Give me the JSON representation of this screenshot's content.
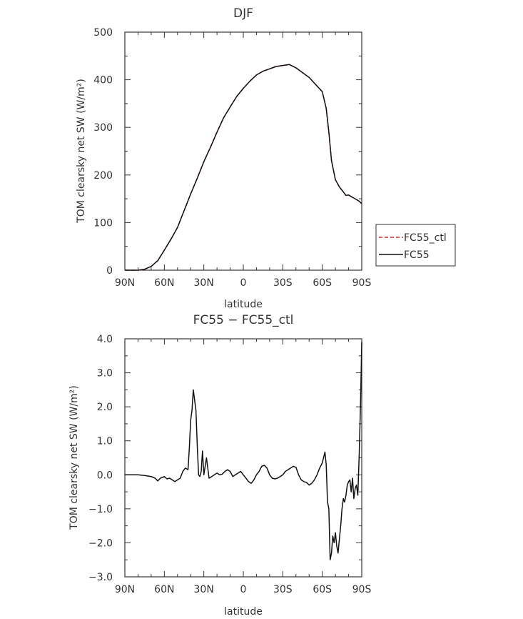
{
  "chart_data": [
    {
      "type": "line",
      "title": "DJF",
      "xlabel": "latitude",
      "ylabel": "TOM clearsky net SW (W/m²)",
      "xlim": [
        90,
        -90
      ],
      "ylim": [
        0,
        500
      ],
      "xticks": [
        90,
        60,
        30,
        0,
        -30,
        -60,
        -90
      ],
      "xtick_labels": [
        "90N",
        "60N",
        "30N",
        "0",
        "30S",
        "60S",
        "90S"
      ],
      "yticks": [
        0,
        100,
        200,
        300,
        400,
        500
      ],
      "ytick_labels": [
        "0",
        "100",
        "200",
        "300",
        "400",
        "500"
      ],
      "legend": "right",
      "series": [
        {
          "name": "FC55_ctl",
          "color": "#dd2222",
          "style": "dashed",
          "x": [
            90,
            80,
            75,
            70,
            65,
            60,
            55,
            50,
            45,
            40,
            35,
            30,
            25,
            20,
            15,
            10,
            5,
            0,
            -5,
            -10,
            -15,
            -20,
            -25,
            -30,
            -35,
            -40,
            -45,
            -50,
            -55,
            -60,
            -63,
            -65,
            -67,
            -70,
            -73,
            -75,
            -78,
            -80,
            -83,
            -85,
            -88,
            -90
          ],
          "y": [
            0,
            0,
            2,
            8,
            20,
            42,
            65,
            90,
            125,
            160,
            193,
            228,
            258,
            290,
            320,
            343,
            365,
            382,
            397,
            410,
            418,
            423,
            428,
            430,
            432,
            425,
            415,
            405,
            390,
            375,
            340,
            290,
            230,
            190,
            175,
            168,
            157,
            158,
            153,
            150,
            145,
            140
          ]
        },
        {
          "name": "FC55",
          "color": "#111111",
          "style": "solid",
          "x": [
            90,
            80,
            75,
            70,
            65,
            60,
            55,
            50,
            45,
            40,
            35,
            30,
            25,
            20,
            15,
            10,
            5,
            0,
            -5,
            -10,
            -15,
            -20,
            -25,
            -30,
            -35,
            -40,
            -45,
            -50,
            -55,
            -60,
            -63,
            -65,
            -67,
            -70,
            -73,
            -75,
            -78,
            -80,
            -83,
            -85,
            -88,
            -90
          ],
          "y": [
            0,
            0,
            2,
            8,
            20,
            42,
            65,
            90,
            125,
            160,
            193,
            228,
            258,
            290,
            320,
            343,
            365,
            382,
            397,
            410,
            418,
            423,
            428,
            430,
            432,
            425,
            415,
            405,
            390,
            375,
            340,
            290,
            230,
            190,
            175,
            168,
            157,
            158,
            153,
            150,
            145,
            140
          ]
        }
      ]
    },
    {
      "type": "line",
      "title": "FC55 − FC55_ctl",
      "xlabel": "latitude",
      "ylabel": "TOM clearsky net SW (W/m²)",
      "xlim": [
        90,
        -90
      ],
      "ylim": [
        -3,
        4
      ],
      "xticks": [
        90,
        60,
        30,
        0,
        -30,
        -60,
        -90
      ],
      "xtick_labels": [
        "90N",
        "60N",
        "30N",
        "0",
        "30S",
        "60S",
        "90S"
      ],
      "yticks": [
        -3,
        -2,
        -1,
        0,
        1,
        2,
        3,
        4
      ],
      "ytick_labels": [
        "−3.0",
        "−2.0",
        "−1.0",
        "0.0",
        "1.0",
        "2.0",
        "3.0",
        "4.0"
      ],
      "series": [
        {
          "name": "",
          "color": "#111111",
          "style": "solid",
          "x": [
            90,
            80,
            75,
            70,
            67,
            65,
            63,
            60,
            58,
            56,
            54,
            52,
            50,
            48,
            46,
            44,
            42,
            41,
            40,
            39,
            38,
            36,
            35,
            34,
            33,
            32,
            31,
            30,
            28,
            26,
            24,
            22,
            20,
            18,
            16,
            14,
            12,
            10,
            8,
            6,
            4,
            2,
            0,
            -2,
            -4,
            -6,
            -8,
            -10,
            -12,
            -14,
            -16,
            -18,
            -20,
            -22,
            -24,
            -26,
            -28,
            -30,
            -32,
            -34,
            -36,
            -38,
            -40,
            -42,
            -44,
            -46,
            -48,
            -50,
            -52,
            -54,
            -56,
            -58,
            -60,
            -62,
            -63,
            -64,
            -65,
            -66,
            -67,
            -68,
            -69,
            -70,
            -71,
            -72,
            -73,
            -74,
            -75,
            -76,
            -77,
            -78,
            -79,
            -80,
            -81,
            -82,
            -83,
            -84,
            -85,
            -86,
            -87,
            -88,
            -89,
            -90
          ],
          "y": [
            0,
            0,
            -0.02,
            -0.05,
            -0.1,
            -0.18,
            -0.1,
            -0.05,
            -0.12,
            -0.1,
            -0.15,
            -0.2,
            -0.15,
            -0.1,
            0.1,
            0.2,
            0.15,
            0.8,
            1.6,
            1.9,
            2.5,
            1.9,
            0.9,
            0.0,
            -0.05,
            0.1,
            0.7,
            0.0,
            0.5,
            -0.1,
            -0.05,
            0.0,
            0.05,
            0.0,
            0.02,
            0.1,
            0.15,
            0.1,
            -0.05,
            0.0,
            0.05,
            0.1,
            0.0,
            -0.1,
            -0.2,
            -0.25,
            -0.15,
            0.0,
            0.1,
            0.25,
            0.28,
            0.2,
            0.0,
            -0.1,
            -0.12,
            -0.1,
            -0.05,
            0.0,
            0.1,
            0.15,
            0.2,
            0.25,
            0.22,
            0.0,
            -0.15,
            -0.2,
            -0.22,
            -0.3,
            -0.25,
            -0.15,
            0.0,
            0.2,
            0.35,
            0.67,
            0.3,
            -0.8,
            -1.0,
            -2.5,
            -2.3,
            -1.8,
            -2.0,
            -1.7,
            -2.1,
            -2.3,
            -1.9,
            -1.5,
            -1.0,
            -0.7,
            -0.8,
            -0.6,
            -0.3,
            -0.2,
            -0.15,
            -0.5,
            -0.1,
            -0.7,
            -0.4,
            -0.3,
            -0.6,
            0.5,
            2.0,
            3.9
          ]
        }
      ]
    }
  ]
}
